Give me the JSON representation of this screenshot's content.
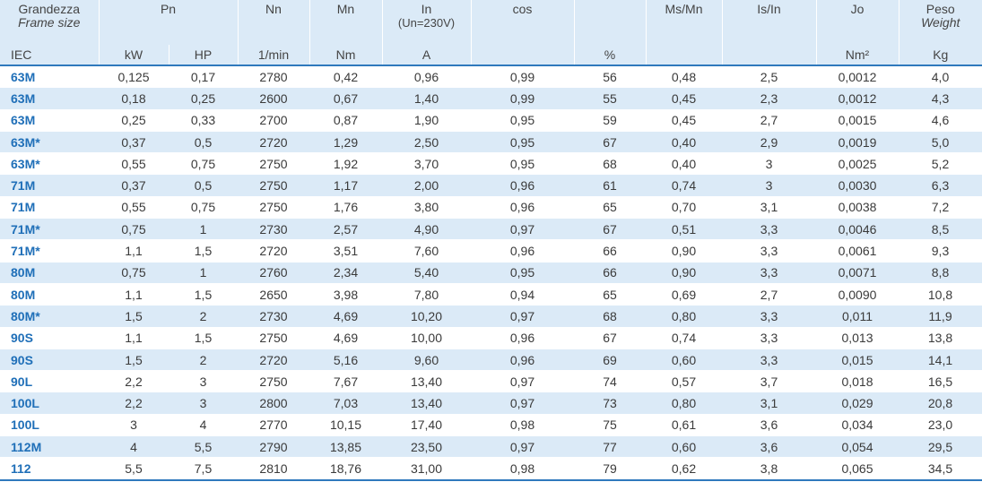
{
  "header": {
    "frame": "Grandezza",
    "frame_en": "Frame size",
    "pn": "Pn",
    "nn": "Nn",
    "mn": "Mn",
    "in": "In",
    "in_note": "(Un=230V)",
    "cos": "cos",
    "ms_mn": "Ms/Mn",
    "is_in": "Is/In",
    "jo": "Jo",
    "weight": "Peso",
    "weight_en": "Weight"
  },
  "units": {
    "iec": "IEC",
    "kw": "kW",
    "hp": "HP",
    "nn": "1/min",
    "mn": "Nm",
    "in": "A",
    "eff": "%",
    "jo": "Nm²",
    "weight": "Kg"
  },
  "table": {
    "rows": [
      [
        "63M",
        "0,125",
        "0,17",
        "2780",
        "0,42",
        "0,96",
        "0,99",
        "56",
        "0,48",
        "2,5",
        "0,0012",
        "4,0"
      ],
      [
        "63M",
        "0,18",
        "0,25",
        "2600",
        "0,67",
        "1,40",
        "0,99",
        "55",
        "0,45",
        "2,3",
        "0,0012",
        "4,3"
      ],
      [
        "63M",
        "0,25",
        "0,33",
        "2700",
        "0,87",
        "1,90",
        "0,95",
        "59",
        "0,45",
        "2,7",
        "0,0015",
        "4,6"
      ],
      [
        "63M*",
        "0,37",
        "0,5",
        "2720",
        "1,29",
        "2,50",
        "0,95",
        "67",
        "0,40",
        "2,9",
        "0,0019",
        "5,0"
      ],
      [
        "63M*",
        "0,55",
        "0,75",
        "2750",
        "1,92",
        "3,70",
        "0,95",
        "68",
        "0,40",
        "3",
        "0,0025",
        "5,2"
      ],
      [
        "71M",
        "0,37",
        "0,5",
        "2750",
        "1,17",
        "2,00",
        "0,96",
        "61",
        "0,74",
        "3",
        "0,0030",
        "6,3"
      ],
      [
        "71M",
        "0,55",
        "0,75",
        "2750",
        "1,76",
        "3,80",
        "0,96",
        "65",
        "0,70",
        "3,1",
        "0,0038",
        "7,2"
      ],
      [
        "71M*",
        "0,75",
        "1",
        "2730",
        "2,57",
        "4,90",
        "0,97",
        "67",
        "0,51",
        "3,3",
        "0,0046",
        "8,5"
      ],
      [
        "71M*",
        "1,1",
        "1,5",
        "2720",
        "3,51",
        "7,60",
        "0,96",
        "66",
        "0,90",
        "3,3",
        "0,0061",
        "9,3"
      ],
      [
        "80M",
        "0,75",
        "1",
        "2760",
        "2,34",
        "5,40",
        "0,95",
        "66",
        "0,90",
        "3,3",
        "0,0071",
        "8,8"
      ],
      [
        "80M",
        "1,1",
        "1,5",
        "2650",
        "3,98",
        "7,80",
        "0,94",
        "65",
        "0,69",
        "2,7",
        "0,0090",
        "10,8"
      ],
      [
        "80M*",
        "1,5",
        "2",
        "2730",
        "4,69",
        "10,20",
        "0,97",
        "68",
        "0,80",
        "3,3",
        "0,011",
        "11,9"
      ],
      [
        "90S",
        "1,1",
        "1,5",
        "2750",
        "4,69",
        "10,00",
        "0,96",
        "67",
        "0,74",
        "3,3",
        "0,013",
        "13,8"
      ],
      [
        "90S",
        "1,5",
        "2",
        "2720",
        "5,16",
        "9,60",
        "0,96",
        "69",
        "0,60",
        "3,3",
        "0,015",
        "14,1"
      ],
      [
        "90L",
        "2,2",
        "3",
        "2750",
        "7,67",
        "13,40",
        "0,97",
        "74",
        "0,57",
        "3,7",
        "0,018",
        "16,5"
      ],
      [
        "100L",
        "2,2",
        "3",
        "2800",
        "7,03",
        "13,40",
        "0,97",
        "73",
        "0,80",
        "3,1",
        "0,029",
        "20,8"
      ],
      [
        "100L",
        "3",
        "4",
        "2770",
        "10,15",
        "17,40",
        "0,98",
        "75",
        "0,61",
        "3,6",
        "0,034",
        "23,0"
      ],
      [
        "112M",
        "4",
        "5,5",
        "2790",
        "13,85",
        "23,50",
        "0,97",
        "77",
        "0,60",
        "3,6",
        "0,054",
        "29,5"
      ],
      [
        "112",
        "5,5",
        "7,5",
        "2810",
        "18,76",
        "31,00",
        "0,98",
        "79",
        "0,62",
        "3,8",
        "0,065",
        "34,5"
      ]
    ]
  }
}
